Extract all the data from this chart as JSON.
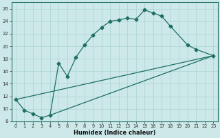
{
  "xlabel": "Humidex (Indice chaleur)",
  "bg_color": "#cce8e8",
  "line_color": "#1e6e64",
  "grid_color": "#b0d8d4",
  "ylim": [
    8,
    27
  ],
  "xlim": [
    -0.5,
    23.5
  ],
  "yticks": [
    8,
    10,
    12,
    14,
    16,
    18,
    20,
    22,
    24,
    26
  ],
  "xticks": [
    0,
    1,
    2,
    3,
    4,
    5,
    6,
    7,
    8,
    9,
    10,
    11,
    12,
    13,
    14,
    15,
    16,
    17,
    18,
    19,
    20,
    21,
    22,
    23
  ],
  "curve1_x": [
    0,
    1,
    2,
    3,
    4,
    5,
    6,
    7,
    8,
    9,
    10,
    11,
    12,
    13,
    14,
    15,
    16,
    17,
    18,
    20,
    21,
    23
  ],
  "curve1_y": [
    11.5,
    9.8,
    9.2,
    8.6,
    9.0,
    17.3,
    15.2,
    18.2,
    20.2,
    21.8,
    23.0,
    24.0,
    24.2,
    24.5,
    24.3,
    25.8,
    25.3,
    24.8,
    23.2,
    20.2,
    19.5,
    18.5
  ],
  "curve2_x": [
    0,
    23
  ],
  "curve2_y": [
    11.5,
    18.5
  ],
  "curve3_x": [
    4,
    23
  ],
  "curve3_y": [
    9.0,
    18.5
  ]
}
